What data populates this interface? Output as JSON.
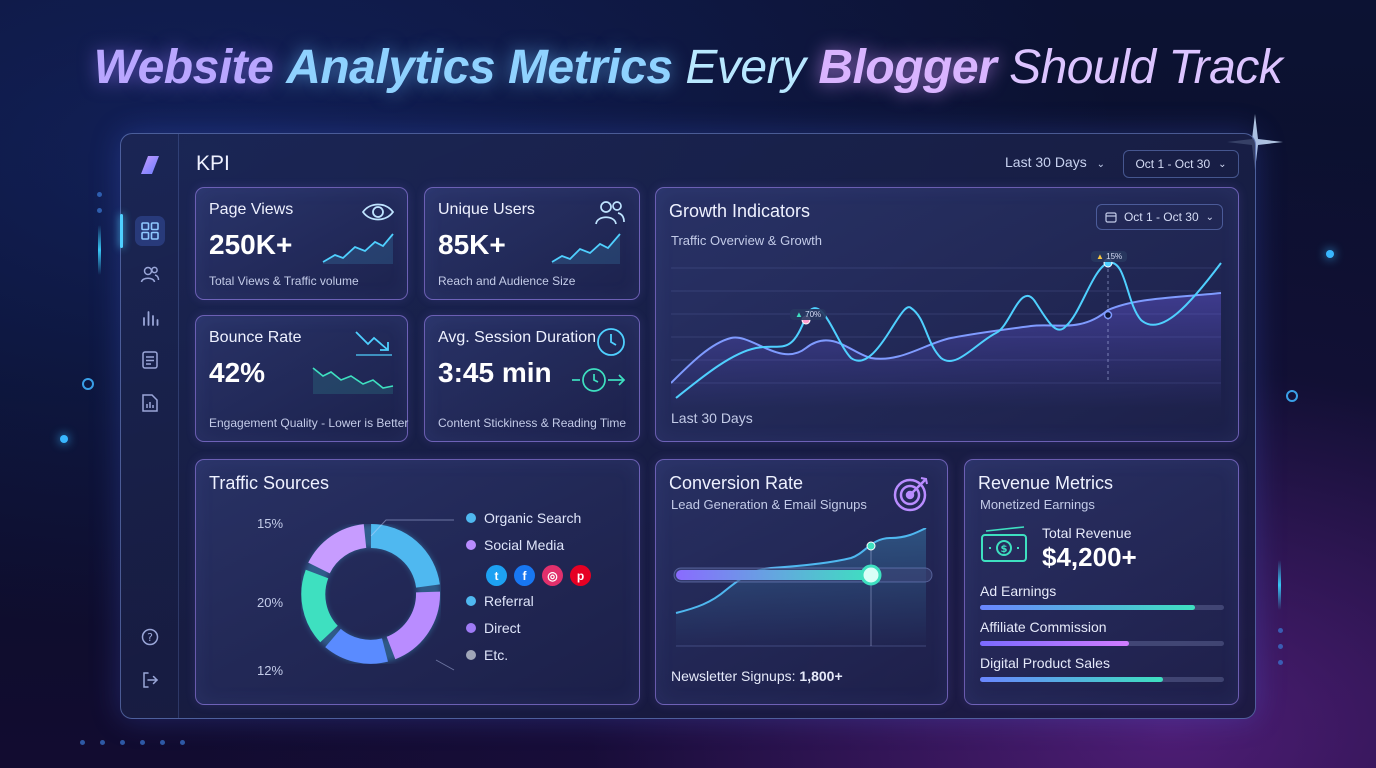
{
  "headline": {
    "w1": "Website",
    "w2": "Analytics Metrics",
    "w3": "Every",
    "w4": "Blogger",
    "w5": "Should Track"
  },
  "header": {
    "title": "KPI",
    "range_select": "Last 30 Days",
    "date_range": "Oct 1 - Oct 30"
  },
  "sidebar": {
    "items": [
      "dashboard-icon",
      "users-icon",
      "bar-chart-icon",
      "document-icon",
      "report-icon"
    ],
    "bottom": [
      "help-icon",
      "logout-icon"
    ]
  },
  "kpi_cards": {
    "page_views": {
      "title": "Page Views",
      "value": "250K+",
      "sub": "Total Views & Traffic volume",
      "icon": "eye-icon"
    },
    "unique_users": {
      "title": "Unique Users",
      "value": "85K+",
      "sub": "Reach and Audience Size",
      "icon": "users-icon"
    },
    "bounce_rate": {
      "title": "Bounce Rate",
      "value": "42%",
      "sub": "Engagement Quality - Lower is Better",
      "icon": "trend-down-icon"
    },
    "session": {
      "title": "Avg. Session Duration",
      "value": "3:45 min",
      "sub": "Content Stickiness & Reading Time",
      "icon": "clock-icon"
    }
  },
  "growth": {
    "title": "Growth Indicators",
    "subtitle": "Traffic Overview & Growth",
    "date_range": "Oct 1 - Oct 30",
    "footer": "Last 30 Days",
    "annotations": [
      "70%",
      "15%"
    ]
  },
  "traffic": {
    "title": "Traffic Sources",
    "percent_labels": [
      "15%",
      "20%",
      "12%"
    ],
    "legend": [
      {
        "label": "Organic Search",
        "color": "#4fb8f0"
      },
      {
        "label": "Social Media",
        "color": "#b98cff"
      },
      {
        "label": "Referral",
        "color": "#4fb8f0"
      },
      {
        "label": "Direct",
        "color": "#9f7bf5"
      },
      {
        "label": "Etc.",
        "color": "#a0a6b8"
      }
    ],
    "social_icons": [
      "twitter-icon",
      "facebook-icon",
      "instagram-icon",
      "pinterest-icon"
    ]
  },
  "conversion": {
    "title": "Conversion Rate",
    "subtitle": "Lead Generation & Email Signups",
    "footer_label": "Newsletter Signups:",
    "footer_value": "1,800+",
    "icon": "target-icon"
  },
  "revenue": {
    "title": "Revenue Metrics",
    "subtitle": "Monetized Earnings",
    "total_label": "Total Revenue",
    "total_value": "$4,200+",
    "bars": [
      {
        "label": "Ad Earnings",
        "fraction": 0.88
      },
      {
        "label": "Affiliate Commission",
        "fraction": 0.61
      },
      {
        "label": "Digital Product Sales",
        "fraction": 0.75
      }
    ]
  },
  "colors": {
    "accent_cyan": "#4fd0ff",
    "accent_purple": "#b98cff",
    "accent_teal": "#3ee0c0"
  }
}
